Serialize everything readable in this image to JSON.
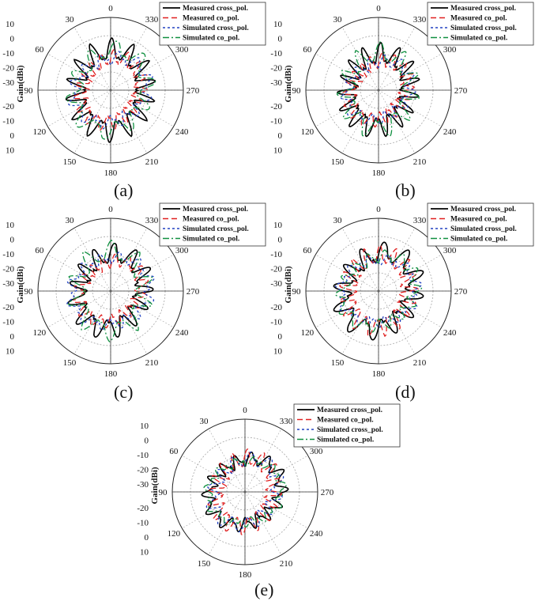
{
  "chart_data": [
    {
      "id": "a",
      "caption": "(a)",
      "type": "polar",
      "ylabel": "Gain(dBi)",
      "angle_labels": [
        "0",
        "30",
        "60",
        "90",
        "120",
        "150",
        "180",
        "210",
        "240",
        "270",
        "300",
        "330"
      ],
      "radial_ticks_top": [
        "10",
        "0",
        "-10",
        "-20",
        "-30"
      ],
      "radial_ticks_bottom": [
        "-20",
        "-10",
        "0",
        "10"
      ],
      "rlim": [
        -30,
        10
      ],
      "legend": [
        "Measured cross_pol.",
        "Measured co_pol.",
        "Simulated cross_pol.",
        "Simulated co_pol."
      ],
      "series": [
        {
          "name": "Measured cross_pol.",
          "color": "#000000",
          "base": -9,
          "amp": 6,
          "lobes": 14,
          "phase": 0.2
        },
        {
          "name": "Measured co_pol.",
          "color": "#e02020",
          "base": -12,
          "amp": 5,
          "lobes": 17,
          "phase": 1.1
        },
        {
          "name": "Simulated cross_pol.",
          "color": "#2040c0",
          "base": -10,
          "amp": 6,
          "lobes": 12,
          "phase": 2.3
        },
        {
          "name": "Simulated co_pol.",
          "color": "#109040",
          "base": -8,
          "amp": 5,
          "lobes": 10,
          "phase": 0.9
        }
      ]
    },
    {
      "id": "b",
      "caption": "(b)",
      "type": "polar",
      "ylabel": "Gain(dBi)",
      "angle_labels": [
        "0",
        "30",
        "60",
        "90",
        "120",
        "150",
        "180",
        "210",
        "240",
        "270",
        "300",
        "330"
      ],
      "radial_ticks_top": [
        "10",
        "0",
        "-10",
        "-20",
        "-30"
      ],
      "radial_ticks_bottom": [
        "-20",
        "-10",
        "0",
        "10"
      ],
      "rlim": [
        -30,
        10
      ],
      "legend": [
        "Measured cross_pol.",
        "Measured co_pol.",
        "Simulated cross_pol.",
        "Simulated co_pol."
      ],
      "series": [
        {
          "name": "Measured cross_pol.",
          "color": "#000000",
          "base": -11,
          "amp": 6,
          "lobes": 15,
          "phase": 0.5
        },
        {
          "name": "Measured co_pol.",
          "color": "#e02020",
          "base": -13,
          "amp": 5,
          "lobes": 18,
          "phase": 1.4
        },
        {
          "name": "Simulated cross_pol.",
          "color": "#2040c0",
          "base": -12,
          "amp": 5,
          "lobes": 13,
          "phase": 2.0
        },
        {
          "name": "Simulated co_pol.",
          "color": "#109040",
          "base": -10,
          "amp": 5,
          "lobes": 11,
          "phase": 0.3
        }
      ]
    },
    {
      "id": "c",
      "caption": "(c)",
      "type": "polar",
      "ylabel": "Gain(dBi)",
      "angle_labels": [
        "0",
        "30",
        "60",
        "90",
        "120",
        "150",
        "180",
        "210",
        "240",
        "270",
        "300",
        "330"
      ],
      "radial_ticks_top": [
        "10",
        "0",
        "-10",
        "-20",
        "-30"
      ],
      "radial_ticks_bottom": [
        "-20",
        "-10",
        "0",
        "10"
      ],
      "rlim": [
        -30,
        10
      ],
      "legend": [
        "Measured cross_pol.",
        "Measured co_pol.",
        "Simulated cross_pol.",
        "Simulated co_pol."
      ],
      "series": [
        {
          "name": "Measured cross_pol.",
          "color": "#000000",
          "base": -10,
          "amp": 6,
          "lobes": 13,
          "phase": 0.8
        },
        {
          "name": "Measured co_pol.",
          "color": "#e02020",
          "base": -12,
          "amp": 5,
          "lobes": 16,
          "phase": 1.7
        },
        {
          "name": "Simulated cross_pol.",
          "color": "#2040c0",
          "base": -9,
          "amp": 6,
          "lobes": 12,
          "phase": 2.6
        },
        {
          "name": "Simulated co_pol.",
          "color": "#109040",
          "base": -9,
          "amp": 5,
          "lobes": 10,
          "phase": 0.1
        }
      ]
    },
    {
      "id": "d",
      "caption": "(d)",
      "type": "polar",
      "ylabel": "Gain(dBi)",
      "angle_labels": [
        "0",
        "30",
        "60",
        "90",
        "120",
        "150",
        "180",
        "210",
        "240",
        "270",
        "300",
        "330"
      ],
      "radial_ticks_top": [
        "10",
        "0",
        "-10",
        "-20",
        "-30"
      ],
      "radial_ticks_bottom": [
        "-20",
        "-10",
        "0",
        "10"
      ],
      "rlim": [
        -30,
        10
      ],
      "legend": [
        "Measured cross_pol.",
        "Measured co_pol.",
        "Simulated cross_pol.",
        "Simulated co_pol."
      ],
      "series": [
        {
          "name": "Measured cross_pol.",
          "color": "#000000",
          "base": -9,
          "amp": 7,
          "lobes": 12,
          "phase": 1.2
        },
        {
          "name": "Measured co_pol.",
          "color": "#e02020",
          "base": -11,
          "amp": 5,
          "lobes": 17,
          "phase": 0.4
        },
        {
          "name": "Simulated cross_pol.",
          "color": "#2040c0",
          "base": -10,
          "amp": 6,
          "lobes": 11,
          "phase": 2.9
        },
        {
          "name": "Simulated co_pol.",
          "color": "#109040",
          "base": -9,
          "amp": 5,
          "lobes": 14,
          "phase": 1.9
        }
      ]
    },
    {
      "id": "e",
      "caption": "(e)",
      "type": "polar",
      "ylabel": "Gain(dBi)",
      "angle_labels": [
        "0",
        "30",
        "60",
        "90",
        "120",
        "150",
        "180",
        "210",
        "240",
        "270",
        "300",
        "330"
      ],
      "radial_ticks_top": [
        "10",
        "0",
        "-10",
        "-20",
        "-30"
      ],
      "radial_ticks_bottom": [
        "-20",
        "-10",
        "0",
        "10"
      ],
      "rlim": [
        -30,
        10
      ],
      "legend": [
        "Measured cross_pol.",
        "Measured co_pol.",
        "Simulated cross_pol.",
        "Simulated co_pol."
      ],
      "series": [
        {
          "name": "Measured cross_pol.",
          "color": "#000000",
          "base": -10,
          "amp": 6,
          "lobes": 14,
          "phase": 2.1
        },
        {
          "name": "Measured co_pol.",
          "color": "#e02020",
          "base": -12,
          "amp": 5,
          "lobes": 16,
          "phase": 0.7
        },
        {
          "name": "Simulated cross_pol.",
          "color": "#2040c0",
          "base": -11,
          "amp": 5,
          "lobes": 12,
          "phase": 1.5
        },
        {
          "name": "Simulated co_pol.",
          "color": "#109040",
          "base": -10,
          "amp": 5,
          "lobes": 11,
          "phase": 2.7
        }
      ]
    }
  ]
}
